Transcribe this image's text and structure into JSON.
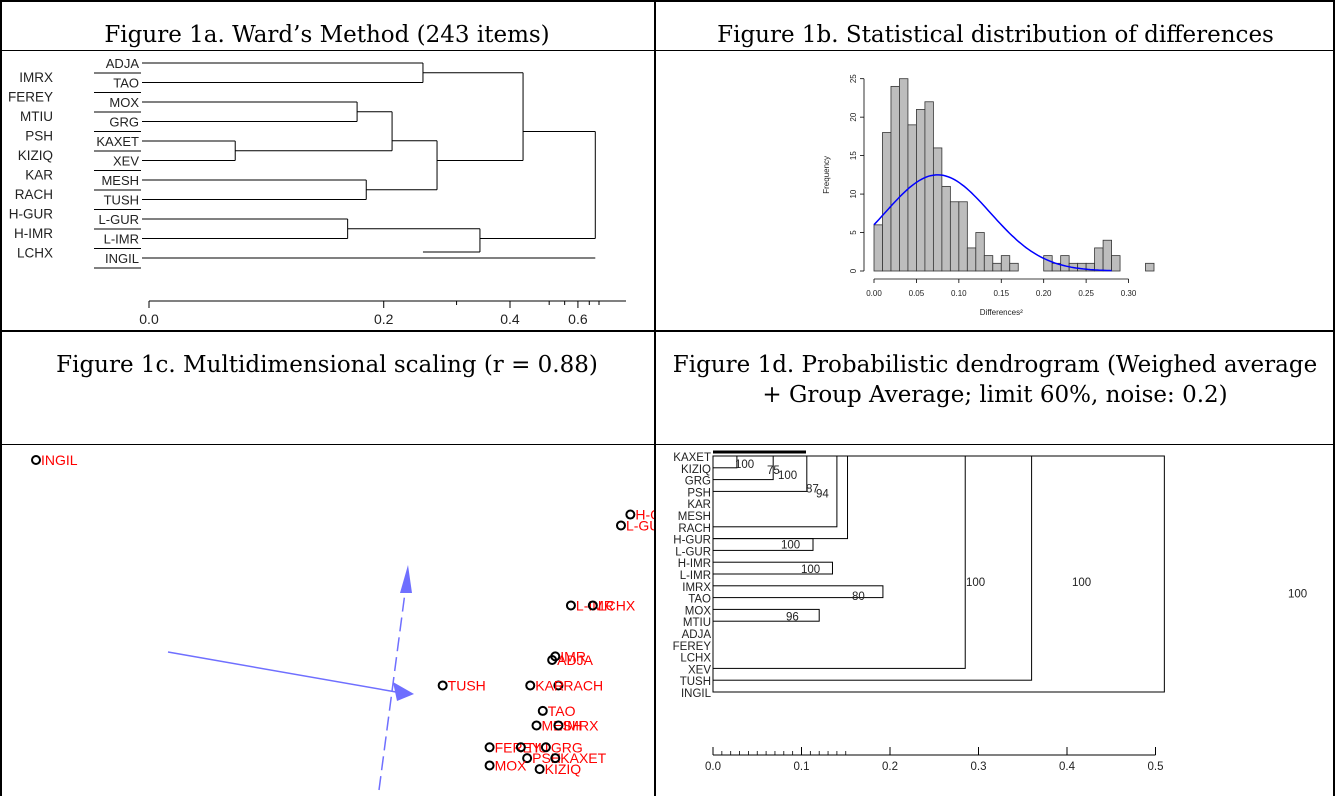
{
  "captions": {
    "a": "Figure 1a. Ward’s Method (243 items)",
    "b": "Figure 1b. Statistical distribution of differences",
    "c": "Figure 1c. Multidimensional scaling (r = 0.88)",
    "d": "Figure 1d. Probabilistic dendrogram (Weighed average + Group Average; limit 60%, noise: 0.2)"
  },
  "chart_data": [
    {
      "id": "ward",
      "type": "dendrogram",
      "left_labels": [
        "IMRX",
        "FEREY",
        "MTIU",
        "PSH",
        "KIZIQ",
        "KAR",
        "RACH",
        "H-GUR",
        "H-IMR",
        "LCHX"
      ],
      "leaf_labels": [
        "ADJA",
        "TAO",
        "MOX",
        "GRG",
        "KAXET",
        "XEV",
        "MESH",
        "TUSH",
        "L-GUR",
        "L-IMR",
        "INGIL"
      ],
      "xticks": [
        "0.0",
        "0.2",
        "0.4",
        "0.6"
      ],
      "merges_at": [
        0.18,
        0.13,
        0.06,
        0.17,
        0.14,
        0.13,
        0.2,
        0.22,
        0.4,
        0.35,
        0.26,
        0.18,
        0.5,
        0.65
      ]
    },
    {
      "id": "histogram",
      "type": "bar",
      "xlabel": "Differences²",
      "ylabel": "Frequency",
      "bin_width": 0.01,
      "bin_start": 0.0,
      "values": [
        6,
        18,
        24,
        25,
        19,
        21,
        22,
        16,
        11,
        9,
        9,
        3,
        5,
        2,
        1,
        2,
        1,
        0,
        0,
        0,
        2,
        1,
        2,
        1,
        1,
        1,
        3,
        4,
        2,
        0,
        0,
        0,
        1
      ],
      "curve_peak": 12.5,
      "xticks": [
        "0.00",
        "0.05",
        "0.10",
        "0.15",
        "0.20",
        "0.25",
        "0.30"
      ],
      "yticks": [
        "0",
        "5",
        "10",
        "15",
        "20",
        "25"
      ],
      "xlim": [
        0,
        0.33
      ],
      "ylim": [
        0,
        26
      ],
      "curve_color": "#0000ff"
    },
    {
      "id": "mds",
      "type": "scatter",
      "points": [
        {
          "label": "INGIL",
          "x": -1.0,
          "y": 1.0
        },
        {
          "label": "H-GUR",
          "x": 0.9,
          "y": 0.85
        },
        {
          "label": "L-GUR",
          "x": 0.87,
          "y": 0.82
        },
        {
          "label": "L-IMR",
          "x": 0.71,
          "y": 0.6
        },
        {
          "label": "LCHX",
          "x": 0.78,
          "y": 0.6
        },
        {
          "label": "ADJA",
          "x": 0.65,
          "y": 0.45
        },
        {
          "label": "IMR",
          "x": 0.66,
          "y": 0.46
        },
        {
          "label": "RACH",
          "x": 0.67,
          "y": 0.38
        },
        {
          "label": "KAR",
          "x": 0.58,
          "y": 0.38
        },
        {
          "label": "TUSH",
          "x": 0.3,
          "y": 0.38
        },
        {
          "label": "TAO",
          "x": 0.62,
          "y": 0.31
        },
        {
          "label": "MESH",
          "x": 0.6,
          "y": 0.27
        },
        {
          "label": "IMRX",
          "x": 0.67,
          "y": 0.27
        },
        {
          "label": "FEREY",
          "x": 0.45,
          "y": 0.21
        },
        {
          "label": "TIU",
          "x": 0.55,
          "y": 0.21
        },
        {
          "label": "GRG",
          "x": 0.63,
          "y": 0.21
        },
        {
          "label": "PSH",
          "x": 0.57,
          "y": 0.18
        },
        {
          "label": "KAXET",
          "x": 0.66,
          "y": 0.18
        },
        {
          "label": "MOX",
          "x": 0.45,
          "y": 0.16
        },
        {
          "label": "KIZIQ",
          "x": 0.61,
          "y": 0.15
        }
      ],
      "point_label_color": "#ff0000",
      "arrow_color": "#6f6fff"
    },
    {
      "id": "probdendro",
      "type": "dendrogram",
      "leaf_labels": [
        "KAXET",
        "KIZIQ",
        "GRG",
        "PSH",
        "KAR",
        "MESH",
        "RACH",
        "H-GUR",
        "L-GUR",
        "H-IMR",
        "L-IMR",
        "IMRX",
        "TAO",
        "MOX",
        "MTIU",
        "ADJA",
        "FEREY",
        "LCHX",
        "XEV",
        "TUSH",
        "INGIL"
      ],
      "support_labels": [
        "100",
        "75",
        "100",
        "87",
        "94",
        "100",
        "100",
        "80",
        "96",
        "100",
        "100",
        "100"
      ],
      "xticks": [
        "0.0",
        "0.1",
        "0.2",
        "0.3",
        "0.4",
        "0.5"
      ]
    }
  ]
}
